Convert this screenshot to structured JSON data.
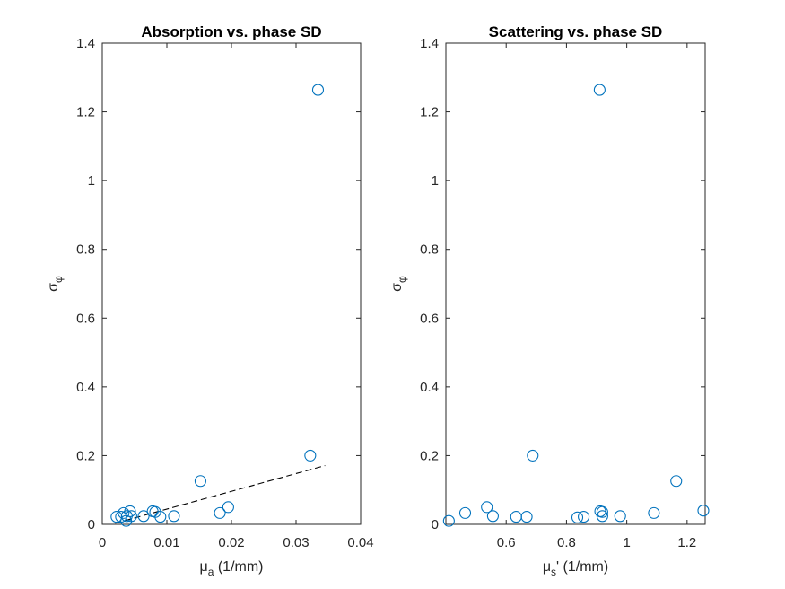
{
  "chart_data": [
    {
      "type": "scatter",
      "title": "Absorption vs. phase SD",
      "xlabel": "μ",
      "xlabel_sub": "a",
      "xlabel_unit": " (1/mm)",
      "ylabel": "σ",
      "ylabel_sub": "φ",
      "xlim": [
        0,
        0.04
      ],
      "ylim": [
        0,
        1.4
      ],
      "xticks": [
        0,
        0.01,
        0.02,
        0.03,
        0.04
      ],
      "xtick_labels": [
        "0",
        "0.01",
        "0.02",
        "0.03",
        "0.04"
      ],
      "yticks": [
        0,
        0.2,
        0.4,
        0.6,
        0.8,
        1.0,
        1.2,
        1.4
      ],
      "ytick_labels": [
        "0",
        "0.2",
        "0.4",
        "0.6",
        "0.8",
        "1",
        "1.2",
        "1.4"
      ],
      "marker_color": "#0072BD",
      "points": [
        {
          "x": 0.0022,
          "y": 0.022
        },
        {
          "x": 0.0029,
          "y": 0.022
        },
        {
          "x": 0.0033,
          "y": 0.033
        },
        {
          "x": 0.0037,
          "y": 0.01
        },
        {
          "x": 0.0038,
          "y": 0.024
        },
        {
          "x": 0.0043,
          "y": 0.038
        },
        {
          "x": 0.0045,
          "y": 0.024
        },
        {
          "x": 0.0064,
          "y": 0.024
        },
        {
          "x": 0.0078,
          "y": 0.038
        },
        {
          "x": 0.0082,
          "y": 0.036
        },
        {
          "x": 0.009,
          "y": 0.022
        },
        {
          "x": 0.0111,
          "y": 0.024
        },
        {
          "x": 0.0152,
          "y": 0.126
        },
        {
          "x": 0.0182,
          "y": 0.033
        },
        {
          "x": 0.0195,
          "y": 0.05
        },
        {
          "x": 0.0322,
          "y": 0.2
        },
        {
          "x": 0.0334,
          "y": 1.264
        }
      ],
      "fit_line": {
        "x": [
          0.002,
          0.0345
        ],
        "y": [
          0.003,
          0.171
        ]
      }
    },
    {
      "type": "scatter",
      "title": "Scattering vs. phase SD",
      "xlabel": "μ",
      "xlabel_sub": "s",
      "xlabel_unit": "' (1/mm)",
      "ylabel": "σ",
      "ylabel_sub": "φ",
      "xlim": [
        0.4,
        1.26
      ],
      "ylim": [
        0,
        1.4
      ],
      "xticks": [
        0.6,
        0.8,
        1.0,
        1.2
      ],
      "xtick_labels": [
        "0.6",
        "0.8",
        "1",
        "1.2"
      ],
      "yticks": [
        0,
        0.2,
        0.4,
        0.6,
        0.8,
        1.0,
        1.2,
        1.4
      ],
      "ytick_labels": [
        "0",
        "0.2",
        "0.4",
        "0.6",
        "0.8",
        "1",
        "1.2",
        "1.4"
      ],
      "marker_color": "#0072BD",
      "points": [
        {
          "x": 0.41,
          "y": 0.01
        },
        {
          "x": 0.464,
          "y": 0.033
        },
        {
          "x": 0.536,
          "y": 0.05
        },
        {
          "x": 0.556,
          "y": 0.024
        },
        {
          "x": 0.633,
          "y": 0.022
        },
        {
          "x": 0.668,
          "y": 0.022
        },
        {
          "x": 0.688,
          "y": 0.2
        },
        {
          "x": 0.836,
          "y": 0.02
        },
        {
          "x": 0.857,
          "y": 0.022
        },
        {
          "x": 0.91,
          "y": 1.264
        },
        {
          "x": 0.912,
          "y": 0.038
        },
        {
          "x": 0.919,
          "y": 0.036
        },
        {
          "x": 0.919,
          "y": 0.024
        },
        {
          "x": 0.978,
          "y": 0.024
        },
        {
          "x": 1.09,
          "y": 0.033
        },
        {
          "x": 1.164,
          "y": 0.126
        },
        {
          "x": 1.254,
          "y": 0.04
        }
      ]
    }
  ]
}
